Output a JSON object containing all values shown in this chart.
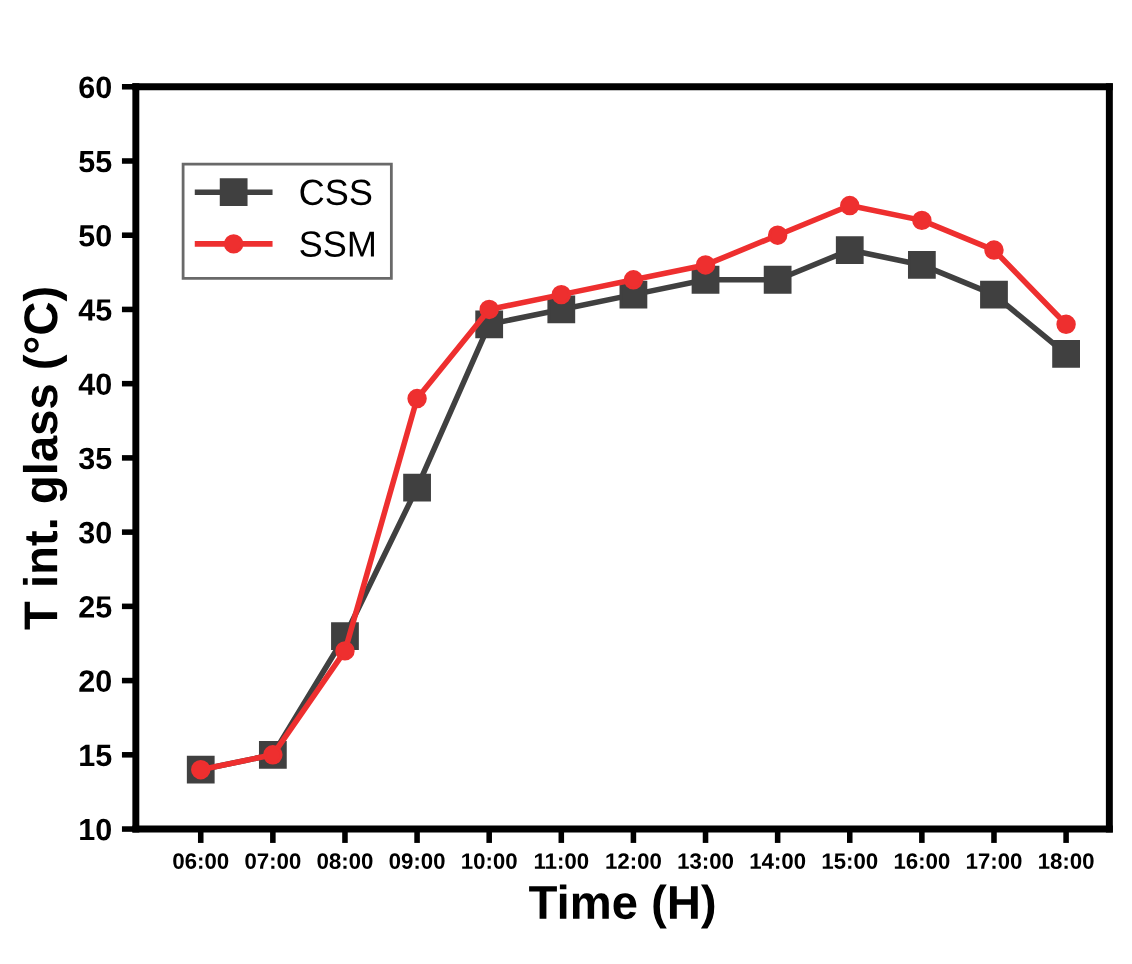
{
  "chart_data": {
    "type": "line",
    "xlabel": "Time (H)",
    "ylabel": "T int. glass (°C)",
    "categories": [
      "06:00",
      "07:00",
      "08:00",
      "09:00",
      "10:00",
      "11:00",
      "12:00",
      "13:00",
      "14:00",
      "15:00",
      "16:00",
      "17:00",
      "18:00"
    ],
    "series": [
      {
        "name": "CSS",
        "color": "#404040",
        "marker": "square",
        "values": [
          14,
          15,
          23,
          33,
          44,
          45,
          46,
          47,
          47,
          49,
          48,
          46,
          42
        ]
      },
      {
        "name": "SSM",
        "color": "#ee2f2f",
        "marker": "circle",
        "values": [
          14,
          15,
          22,
          39,
          45,
          46,
          47,
          48,
          50,
          52,
          51,
          49,
          44
        ]
      }
    ],
    "ylim": [
      10,
      60
    ],
    "yticks": [
      10,
      15,
      20,
      25,
      30,
      35,
      40,
      45,
      50,
      55,
      60
    ],
    "legend": "top left",
    "grid": false,
    "line_style": "solid"
  }
}
